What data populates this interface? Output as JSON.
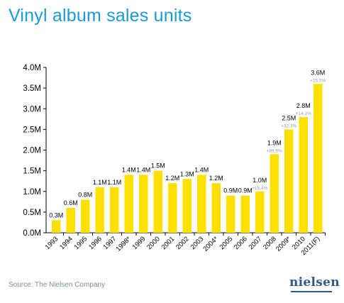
{
  "title": "Vinyl album sales units",
  "source": "Source: The Nielsen Company",
  "logo_text": "nielsen",
  "colors": {
    "bar": "#ffe000",
    "title": "#1a9ad6",
    "axis": "#000000",
    "growth": "#999999"
  },
  "chart_data": {
    "type": "bar",
    "title": "Vinyl album sales units",
    "xlabel": "",
    "ylabel": "",
    "ylim": [
      0,
      4.0
    ],
    "yticks": [
      "0.0M",
      "0.5M",
      "1.0M",
      "1.5M",
      "2.0M",
      "2.5M",
      "3.0M",
      "3.5M",
      "4.0M"
    ],
    "grid": false,
    "categories": [
      "1993",
      "1994",
      "1995",
      "1996",
      "1997",
      "1998*",
      "1999",
      "2000",
      "2001",
      "2002",
      "2003",
      "2004*",
      "2005",
      "2006",
      "2007",
      "2008",
      "2009*",
      "2010",
      "2011(F)"
    ],
    "values": [
      0.3,
      0.6,
      0.8,
      1.1,
      1.1,
      1.4,
      1.4,
      1.5,
      1.2,
      1.3,
      1.4,
      1.2,
      0.9,
      0.9,
      1.0,
      1.9,
      2.5,
      2.8,
      3.6
    ],
    "labels": [
      "0.3M",
      "0.6M",
      "0.8M",
      "1.1M",
      "1.1M",
      "1.4M",
      "1.4M",
      "1.5M",
      "1.2M",
      "1.3M",
      "1.4M",
      "1.2M",
      "0.9M",
      "0.9M",
      "1.0M",
      "1.9M",
      "2.5M",
      "2.8M",
      "3.6M"
    ],
    "growth": [
      "",
      "",
      "",
      "",
      "",
      "",
      "",
      "",
      "",
      "",
      "",
      "",
      "",
      "",
      "+15.4%",
      "+89.6%",
      "+32.3%",
      "+14.2%",
      "+25.5%"
    ]
  }
}
